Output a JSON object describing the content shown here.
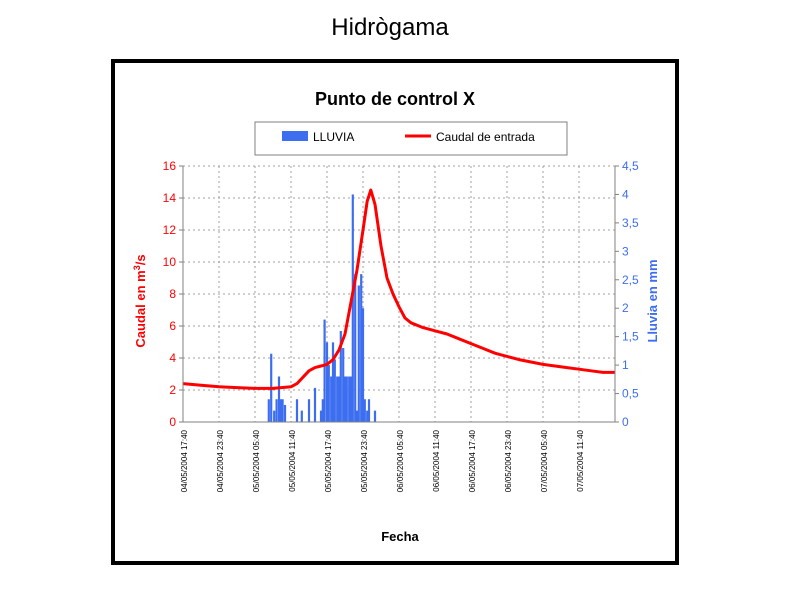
{
  "page_title": "Hidrògama",
  "chart_data": {
    "type": "bar+line",
    "title": "Punto de control X",
    "xlabel": "Fecha",
    "ylabel_left": "Caudal en m³/s",
    "ylabel_left_main": "Caudal en m",
    "ylabel_left_sup": "3",
    "ylabel_left_tail": "/s",
    "ylabel_right": "Lluvia en mm",
    "ylim_left": [
      0,
      16
    ],
    "yticks_left": [
      "0",
      "2",
      "4",
      "6",
      "8",
      "10",
      "12",
      "14",
      "16"
    ],
    "ylim_right": [
      0,
      4.5
    ],
    "yticks_right": [
      "0",
      "0,5",
      "1",
      "1,5",
      "2",
      "2,5",
      "3",
      "3,5",
      "4",
      "4,5"
    ],
    "xlim_hours": [
      0,
      72
    ],
    "x_tick_labels": [
      "04/05/2004 17:40",
      "04/05/2004 23:40",
      "05/05/2004 05:40",
      "05/05/2004 11:40",
      "05/05/2004 17:40",
      "05/05/2004 23:40",
      "06/05/2004 05:40",
      "06/05/2004 11:40",
      "06/05/2004 17:40",
      "06/05/2004 23:40",
      "07/05/2004 05:40",
      "07/05/2004 11:40"
    ],
    "grid": true,
    "legend_position": "top-center",
    "series": [
      {
        "name": "LLUVIA",
        "type": "bar",
        "axis": "right",
        "color": "#3d6ef0",
        "x": [
          14.3,
          14.7,
          15.2,
          15.6,
          16.0,
          16.3,
          16.6,
          17.0,
          19.0,
          19.8,
          21.0,
          22.0,
          23.0,
          23.3,
          23.6,
          24.0,
          24.3,
          24.7,
          25.0,
          25.3,
          25.7,
          26.0,
          26.3,
          26.7,
          27.0,
          27.3,
          27.7,
          28.0,
          28.3,
          28.7,
          29.0,
          29.3,
          29.7,
          30.0,
          30.3,
          30.7,
          31.0,
          32.0
        ],
        "values": [
          0.4,
          1.2,
          0.2,
          0.4,
          0.8,
          0.4,
          0.4,
          0.3,
          0.4,
          0.2,
          0.4,
          0.6,
          0.2,
          0.4,
          1.8,
          1.4,
          1.0,
          0.8,
          1.4,
          1.1,
          0.8,
          0.8,
          1.6,
          1.3,
          0.8,
          0.8,
          0.8,
          0.8,
          4.0,
          2.6,
          0.2,
          2.4,
          2.6,
          2.0,
          0.4,
          0.2,
          0.4,
          0.2
        ]
      },
      {
        "name": "Caudal de entrada",
        "type": "line",
        "axis": "left",
        "color": "#ff0000",
        "x": [
          0,
          3,
          6,
          9,
          12,
          15,
          18,
          19,
          20,
          21,
          22,
          23,
          24,
          25,
          26,
          27,
          28,
          29,
          30,
          30.7,
          31.3,
          32,
          33,
          34,
          35,
          36,
          37,
          38,
          40,
          42,
          44,
          46,
          48,
          50,
          52,
          54,
          56,
          58,
          60,
          62,
          64,
          66,
          68,
          70,
          72
        ],
        "values": [
          2.4,
          2.3,
          2.2,
          2.15,
          2.1,
          2.1,
          2.2,
          2.4,
          2.8,
          3.2,
          3.4,
          3.5,
          3.6,
          3.9,
          4.5,
          5.5,
          7.5,
          9.5,
          12.0,
          13.8,
          14.5,
          13.6,
          11.0,
          9.0,
          8.0,
          7.2,
          6.5,
          6.2,
          5.9,
          5.7,
          5.5,
          5.2,
          4.9,
          4.6,
          4.3,
          4.1,
          3.9,
          3.75,
          3.6,
          3.5,
          3.4,
          3.3,
          3.2,
          3.1,
          3.1
        ]
      }
    ]
  }
}
